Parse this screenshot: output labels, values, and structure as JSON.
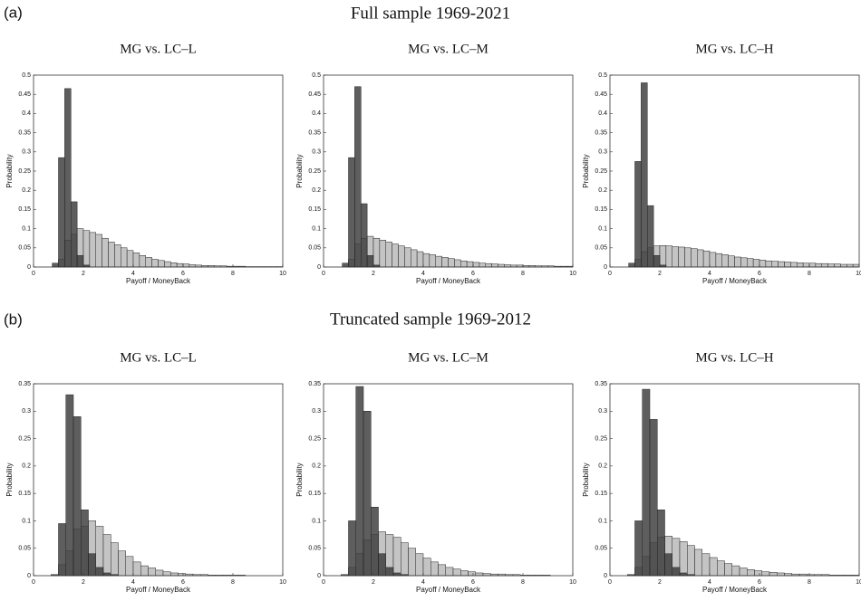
{
  "sections": [
    {
      "label": "(a)",
      "title": "Full sample 1969-2021"
    },
    {
      "label": "(b)",
      "title": "Truncated sample 1969-2012"
    }
  ],
  "chart_data": [
    {
      "type": "histogram",
      "title": "MG vs. LC–L",
      "xlabel": "Payoff / MoneyBack",
      "ylabel": "Probability",
      "xlim": [
        0,
        10
      ],
      "ylim": [
        0,
        0.5
      ],
      "xticks": [
        0,
        2,
        4,
        6,
        8,
        10
      ],
      "yticks": [
        0,
        0.05,
        0.1,
        0.15,
        0.2,
        0.25,
        0.3,
        0.35,
        0.4,
        0.45,
        0.5
      ],
      "bins": [
        0.5,
        0.75,
        1,
        1.25,
        1.5,
        1.75,
        2,
        2.25,
        2.5,
        2.75,
        3,
        3.25,
        3.5,
        3.75,
        4,
        4.25,
        4.5,
        4.75,
        5,
        5.25,
        5.5,
        5.75,
        6,
        6.25,
        6.5,
        6.75,
        7,
        7.25,
        7.5,
        7.75,
        8,
        8.25,
        8.5,
        8.75,
        9,
        9.25,
        9.5,
        9.75,
        10
      ],
      "series": [
        {
          "color": "#c4c4c4",
          "values": [
            0,
            0,
            0.02,
            0.07,
            0.085,
            0.1,
            0.095,
            0.09,
            0.085,
            0.075,
            0.065,
            0.058,
            0.05,
            0.043,
            0.037,
            0.03,
            0.025,
            0.02,
            0.017,
            0.014,
            0.011,
            0.009,
            0.008,
            0.006,
            0.005,
            0.004,
            0.004,
            0.003,
            0.003,
            0.002,
            0.002,
            0.002,
            0.001,
            0.001,
            0.001,
            0.001,
            0.001,
            0.001
          ]
        },
        {
          "color": "#3a3a3a",
          "values": [
            0,
            0.01,
            0.285,
            0.465,
            0.17,
            0.03,
            0.005,
            0,
            0,
            0,
            0,
            0,
            0,
            0,
            0,
            0,
            0,
            0,
            0,
            0,
            0,
            0,
            0,
            0,
            0,
            0,
            0,
            0,
            0,
            0,
            0,
            0,
            0,
            0,
            0,
            0,
            0,
            0
          ]
        }
      ]
    },
    {
      "type": "histogram",
      "title": "MG vs. LC–M",
      "xlabel": "Payoff / MoneyBack",
      "ylabel": "Probability",
      "xlim": [
        0,
        10
      ],
      "ylim": [
        0,
        0.5
      ],
      "xticks": [
        0,
        2,
        4,
        6,
        8,
        10
      ],
      "yticks": [
        0,
        0.05,
        0.1,
        0.15,
        0.2,
        0.25,
        0.3,
        0.35,
        0.4,
        0.45,
        0.5
      ],
      "bins": [
        0.5,
        0.75,
        1,
        1.25,
        1.5,
        1.75,
        2,
        2.25,
        2.5,
        2.75,
        3,
        3.25,
        3.5,
        3.75,
        4,
        4.25,
        4.5,
        4.75,
        5,
        5.25,
        5.5,
        5.75,
        6,
        6.25,
        6.5,
        6.75,
        7,
        7.25,
        7.5,
        7.75,
        8,
        8.25,
        8.5,
        8.75,
        9,
        9.25,
        9.5,
        9.75,
        10
      ],
      "series": [
        {
          "color": "#c4c4c4",
          "values": [
            0,
            0,
            0.02,
            0.06,
            0.075,
            0.08,
            0.075,
            0.07,
            0.065,
            0.06,
            0.055,
            0.05,
            0.045,
            0.04,
            0.035,
            0.032,
            0.028,
            0.025,
            0.022,
            0.019,
            0.016,
            0.014,
            0.012,
            0.01,
            0.009,
            0.008,
            0.007,
            0.006,
            0.005,
            0.005,
            0.004,
            0.004,
            0.003,
            0.003,
            0.003,
            0.002,
            0.002,
            0.002
          ]
        },
        {
          "color": "#3a3a3a",
          "values": [
            0,
            0.01,
            0.285,
            0.47,
            0.165,
            0.03,
            0.005,
            0,
            0,
            0,
            0,
            0,
            0,
            0,
            0,
            0,
            0,
            0,
            0,
            0,
            0,
            0,
            0,
            0,
            0,
            0,
            0,
            0,
            0,
            0,
            0,
            0,
            0,
            0,
            0,
            0,
            0,
            0
          ]
        }
      ]
    },
    {
      "type": "histogram",
      "title": "MG vs. LC–H",
      "xlabel": "Payoff / MoneyBack",
      "ylabel": "Probability",
      "xlim": [
        0,
        10
      ],
      "ylim": [
        0,
        0.5
      ],
      "xticks": [
        0,
        2,
        4,
        6,
        8,
        10
      ],
      "yticks": [
        0,
        0.05,
        0.1,
        0.15,
        0.2,
        0.25,
        0.3,
        0.35,
        0.4,
        0.45,
        0.5
      ],
      "bins": [
        0.5,
        0.75,
        1,
        1.25,
        1.5,
        1.75,
        2,
        2.25,
        2.5,
        2.75,
        3,
        3.25,
        3.5,
        3.75,
        4,
        4.25,
        4.5,
        4.75,
        5,
        5.25,
        5.5,
        5.75,
        6,
        6.25,
        6.5,
        6.75,
        7,
        7.25,
        7.5,
        7.75,
        8,
        8.25,
        8.5,
        8.75,
        9,
        9.25,
        9.5,
        9.75,
        10
      ],
      "series": [
        {
          "color": "#c4c4c4",
          "values": [
            0,
            0,
            0.02,
            0.04,
            0.05,
            0.055,
            0.056,
            0.055,
            0.053,
            0.052,
            0.05,
            0.048,
            0.045,
            0.042,
            0.038,
            0.035,
            0.032,
            0.029,
            0.026,
            0.024,
            0.022,
            0.02,
            0.018,
            0.016,
            0.015,
            0.014,
            0.013,
            0.012,
            0.011,
            0.01,
            0.01,
            0.009,
            0.009,
            0.008,
            0.008,
            0.007,
            0.007,
            0.007
          ]
        },
        {
          "color": "#3a3a3a",
          "values": [
            0,
            0.01,
            0.275,
            0.48,
            0.16,
            0.03,
            0.005,
            0,
            0,
            0,
            0,
            0,
            0,
            0,
            0,
            0,
            0,
            0,
            0,
            0,
            0,
            0,
            0,
            0,
            0,
            0,
            0,
            0,
            0,
            0,
            0,
            0,
            0,
            0,
            0,
            0,
            0,
            0
          ]
        }
      ]
    },
    {
      "type": "histogram",
      "title": "MG vs. LC–L",
      "xlabel": "Payoff / MoneyBack",
      "ylabel": "Probability",
      "xlim": [
        0,
        10
      ],
      "ylim": [
        0,
        0.35
      ],
      "xticks": [
        0,
        2,
        4,
        6,
        8,
        10
      ],
      "yticks": [
        0,
        0.05,
        0.1,
        0.15,
        0.2,
        0.25,
        0.3,
        0.35
      ],
      "bins": [
        0.4,
        0.7,
        1,
        1.3,
        1.6,
        1.9,
        2.2,
        2.5,
        2.8,
        3.1,
        3.4,
        3.7,
        4,
        4.3,
        4.6,
        4.9,
        5.2,
        5.5,
        5.8,
        6.1,
        6.4,
        6.7,
        7,
        7.3,
        7.6,
        7.9,
        8.2,
        8.5,
        8.8,
        9.1,
        9.4,
        9.7,
        10
      ],
      "series": [
        {
          "color": "#c4c4c4",
          "values": [
            0,
            0,
            0.02,
            0.045,
            0.085,
            0.09,
            0.1,
            0.09,
            0.075,
            0.06,
            0.045,
            0.035,
            0.025,
            0.018,
            0.014,
            0.01,
            0.007,
            0.005,
            0.004,
            0.003,
            0.002,
            0.002,
            0.001,
            0.001,
            0.001,
            0.001,
            0.001,
            0,
            0,
            0,
            0,
            0
          ]
        },
        {
          "color": "#3a3a3a",
          "values": [
            0,
            0.002,
            0.095,
            0.33,
            0.29,
            0.12,
            0.04,
            0.015,
            0.005,
            0.002,
            0,
            0,
            0,
            0,
            0,
            0,
            0,
            0,
            0,
            0,
            0,
            0,
            0,
            0,
            0,
            0,
            0,
            0,
            0,
            0,
            0,
            0
          ]
        }
      ]
    },
    {
      "type": "histogram",
      "title": "MG vs. LC–M",
      "xlabel": "Payoff / MoneyBack",
      "ylabel": "Probability",
      "xlim": [
        0,
        10
      ],
      "ylim": [
        0,
        0.35
      ],
      "xticks": [
        0,
        2,
        4,
        6,
        8,
        10
      ],
      "yticks": [
        0,
        0.05,
        0.1,
        0.15,
        0.2,
        0.25,
        0.3,
        0.35
      ],
      "bins": [
        0.4,
        0.7,
        1,
        1.3,
        1.6,
        1.9,
        2.2,
        2.5,
        2.8,
        3.1,
        3.4,
        3.7,
        4,
        4.3,
        4.6,
        4.9,
        5.2,
        5.5,
        5.8,
        6.1,
        6.4,
        6.7,
        7,
        7.3,
        7.6,
        7.9,
        8.2,
        8.5,
        8.8,
        9.1,
        9.4,
        9.7,
        10
      ],
      "series": [
        {
          "color": "#c4c4c4",
          "values": [
            0,
            0,
            0.015,
            0.04,
            0.065,
            0.075,
            0.08,
            0.075,
            0.07,
            0.06,
            0.05,
            0.04,
            0.032,
            0.025,
            0.02,
            0.015,
            0.012,
            0.009,
            0.007,
            0.005,
            0.004,
            0.003,
            0.003,
            0.002,
            0.002,
            0.001,
            0.001,
            0.001,
            0.001,
            0,
            0,
            0
          ]
        },
        {
          "color": "#3a3a3a",
          "values": [
            0,
            0.002,
            0.1,
            0.345,
            0.3,
            0.125,
            0.04,
            0.015,
            0.005,
            0.002,
            0,
            0,
            0,
            0,
            0,
            0,
            0,
            0,
            0,
            0,
            0,
            0,
            0,
            0,
            0,
            0,
            0,
            0,
            0,
            0,
            0,
            0
          ]
        }
      ]
    },
    {
      "type": "histogram",
      "title": "MG vs. LC–H",
      "xlabel": "Payoff / MoneyBack",
      "ylabel": "Probability",
      "xlim": [
        0,
        10
      ],
      "ylim": [
        0,
        0.35
      ],
      "xticks": [
        0,
        2,
        4,
        6,
        8,
        10
      ],
      "yticks": [
        0,
        0.05,
        0.1,
        0.15,
        0.2,
        0.25,
        0.3,
        0.35
      ],
      "bins": [
        0.4,
        0.7,
        1,
        1.3,
        1.6,
        1.9,
        2.2,
        2.5,
        2.8,
        3.1,
        3.4,
        3.7,
        4,
        4.3,
        4.6,
        4.9,
        5.2,
        5.5,
        5.8,
        6.1,
        6.4,
        6.7,
        7,
        7.3,
        7.6,
        7.9,
        8.2,
        8.5,
        8.8,
        9.1,
        9.4,
        9.7,
        10
      ],
      "series": [
        {
          "color": "#c4c4c4",
          "values": [
            0,
            0,
            0.015,
            0.035,
            0.06,
            0.07,
            0.072,
            0.068,
            0.062,
            0.055,
            0.048,
            0.04,
            0.033,
            0.027,
            0.022,
            0.018,
            0.014,
            0.011,
            0.009,
            0.007,
            0.006,
            0.005,
            0.004,
            0.003,
            0.003,
            0.002,
            0.002,
            0.002,
            0.001,
            0.001,
            0.001,
            0.001
          ]
        },
        {
          "color": "#3a3a3a",
          "values": [
            0,
            0.002,
            0.1,
            0.34,
            0.285,
            0.12,
            0.04,
            0.015,
            0.005,
            0.002,
            0,
            0,
            0,
            0,
            0,
            0,
            0,
            0,
            0,
            0,
            0,
            0,
            0,
            0,
            0,
            0,
            0,
            0,
            0,
            0,
            0,
            0
          ]
        }
      ]
    }
  ]
}
